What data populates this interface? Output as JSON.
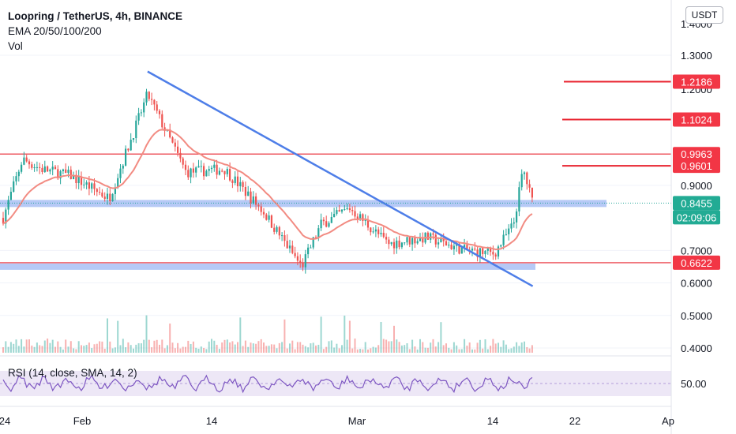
{
  "header": {
    "title": "Loopring / TetherUS, 4h, BINANCE",
    "indicator": "EMA 20/50/100/200",
    "volume": "Vol",
    "currency_button": "USDT"
  },
  "rsi": {
    "label": "RSI (14, close, SMA, 14, 2)",
    "axis_label": "50.00",
    "level": 50
  },
  "price_labels": [
    {
      "text": "1.2186",
      "value": 1.2186,
      "color": "#f23645"
    },
    {
      "text": "1.1024",
      "value": 1.1024,
      "color": "#f23645"
    },
    {
      "text": "0.9963",
      "value": 0.9963,
      "color": "#f23645"
    },
    {
      "text": "0.9601",
      "value": 0.9601,
      "color": "#f23645"
    },
    {
      "text": "0.8455",
      "value": 0.8455,
      "color": "#22ab94"
    },
    {
      "text": "02:09:06",
      "value": 0.8455,
      "color": "#22ab94",
      "sub": true
    },
    {
      "text": "0.6622",
      "value": 0.6622,
      "color": "#f23645"
    }
  ],
  "colors": {
    "up": "#26a69a",
    "down": "#ef5350",
    "ema": "#f28b82",
    "trendline": "#4e7ee8",
    "zone": "#a9c0f4",
    "resistance": "#e8232f",
    "rsi_line": "#7e57c2",
    "rsi_band": "#ede7f6"
  },
  "chart_data": {
    "type": "candlestick",
    "title": "Loopring / TetherUS, 4h, BINANCE",
    "y_axis_ticks": [
      1.3,
      0.9,
      0.7,
      0.6,
      0.5,
      0.4
    ],
    "y_axis_tick_labels": [
      "1.3000",
      "0.9000",
      "0.7000",
      "0.6000",
      "0.5000",
      "0.4000"
    ],
    "y_axis_partial_labels": [
      "1.4000",
      "1.2000"
    ],
    "x_axis_ticks": [
      "24",
      "Feb",
      "14",
      "Mar",
      "14",
      "22",
      "Ap"
    ],
    "price_series": [
      {
        "x": "Jan 24",
        "y": 0.8
      },
      {
        "x": "Jan 26",
        "y": 0.98
      },
      {
        "x": "Jan 28",
        "y": 0.95
      },
      {
        "x": "Jan 31",
        "y": 0.93
      },
      {
        "x": "Feb 4",
        "y": 0.86
      },
      {
        "x": "Feb 8",
        "y": 1.18
      },
      {
        "x": "Feb 10",
        "y": 1.06
      },
      {
        "x": "Feb 12",
        "y": 0.94
      },
      {
        "x": "Feb 16",
        "y": 0.95
      },
      {
        "x": "Feb 20",
        "y": 0.82
      },
      {
        "x": "Feb 24",
        "y": 0.65
      },
      {
        "x": "Feb 26",
        "y": 0.78
      },
      {
        "x": "Mar 1",
        "y": 0.83
      },
      {
        "x": "Mar 5",
        "y": 0.72
      },
      {
        "x": "Mar 9",
        "y": 0.74
      },
      {
        "x": "Mar 13",
        "y": 0.7
      },
      {
        "x": "Mar 16",
        "y": 0.69
      },
      {
        "x": "Mar 18",
        "y": 0.78
      },
      {
        "x": "Mar 19",
        "y": 0.95
      },
      {
        "x": "Mar 20",
        "y": 0.8455
      }
    ],
    "horizontal_lines": [
      1.2186,
      1.1024,
      0.9963,
      0.9601,
      0.6622
    ],
    "support_zones": [
      0.8455,
      0.6622
    ],
    "trendline": {
      "from": {
        "x": "Feb 8",
        "y": 1.25
      },
      "to": {
        "x": "Mar 20",
        "y": 0.59
      }
    },
    "last_price": 0.8455,
    "countdown": "02:09:06",
    "indicators": [
      "EMA 20/50/100/200",
      "Vol",
      "RSI (14, close, SMA, 14, 2)"
    ]
  }
}
